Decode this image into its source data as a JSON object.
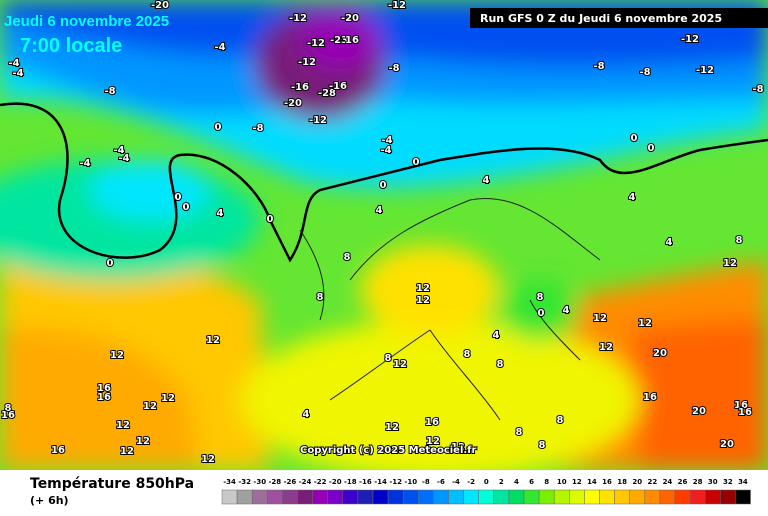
{
  "header": {
    "date": "Jeudi 6 novembre 2025",
    "time": "7:00 locale",
    "run": "Run GFS 0 Z du Jeudi 6 novembre 2025"
  },
  "copyright": "Copyright (c) 2025 Meteociel.fr",
  "footer": {
    "title": "Température 850hPa",
    "step": "(+ 6h)"
  },
  "map_labels": [
    -20,
    -12,
    -20,
    -12,
    -4,
    -12,
    -23,
    16,
    -8,
    -12,
    -16,
    -28,
    -16,
    -20,
    -8,
    -12,
    -4,
    -4,
    -8,
    -12,
    -12,
    -8,
    -8,
    -8,
    0,
    -4,
    -4,
    -4,
    -4,
    -4,
    0,
    0,
    0,
    0,
    0,
    0,
    4,
    0,
    4,
    4,
    0,
    4,
    4,
    8,
    12,
    8,
    8,
    12,
    12,
    8,
    0,
    4,
    12,
    12,
    12,
    20,
    8,
    12,
    12,
    12,
    16,
    16,
    12,
    12,
    8,
    16,
    12,
    12,
    12,
    12,
    16,
    4,
    12,
    12,
    16,
    16,
    20,
    16,
    16,
    20,
    8,
    8,
    8,
    8,
    4,
    8,
    12
  ],
  "colorbar": {
    "ticks": [
      -34,
      -32,
      -30,
      -28,
      -26,
      -24,
      -22,
      -20,
      -18,
      -16,
      -14,
      -12,
      -10,
      -8,
      -6,
      -4,
      -2,
      0,
      2,
      4,
      6,
      8,
      10,
      12,
      14,
      16,
      18,
      20,
      22,
      24,
      26,
      28,
      30,
      32,
      34
    ],
    "colors": [
      "#c8c8c8",
      "#a0a0a0",
      "#9c6e9c",
      "#a050a0",
      "#8c3c8c",
      "#781e78",
      "#9600b4",
      "#7800c8",
      "#3c00c8",
      "#1e1eb4",
      "#0000c8",
      "#0032dc",
      "#0050f0",
      "#006eff",
      "#0096ff",
      "#00beff",
      "#00e6ff",
      "#00ffd2",
      "#00e6a0",
      "#00dc64",
      "#32e632",
      "#78f000",
      "#b4f500",
      "#dcfa00",
      "#ffff00",
      "#ffe100",
      "#ffc800",
      "#ffaa00",
      "#ff8c00",
      "#ff6400",
      "#ff3c00",
      "#f01e1e",
      "#c80000",
      "#960000",
      "#000000"
    ]
  }
}
